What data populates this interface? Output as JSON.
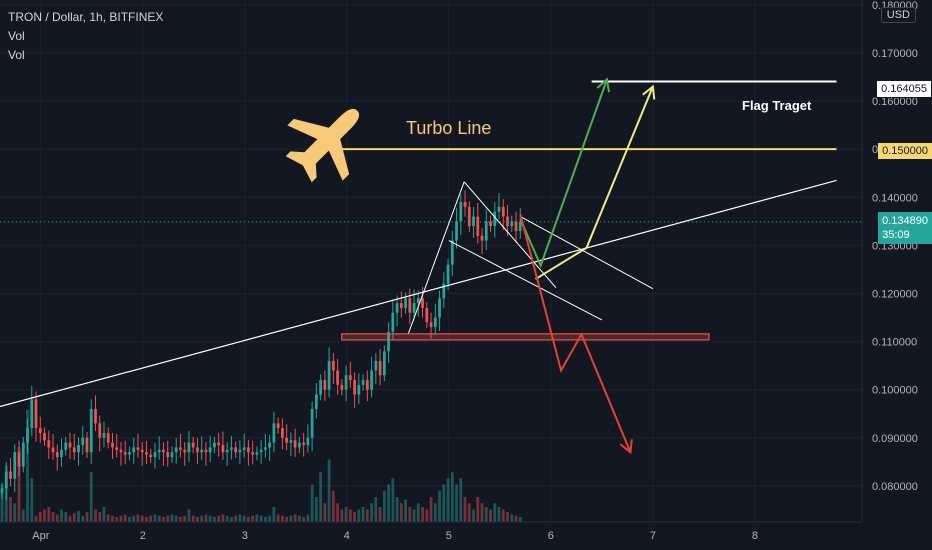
{
  "legend": {
    "title": "TRON / Dollar, 1h, BITFINEX",
    "vol1": "Vol",
    "vol2": "Vol"
  },
  "currency_button": "USD",
  "colors": {
    "background": "#131722",
    "up": "#26a69a",
    "down": "#ef5350",
    "trend": "#ffffff",
    "turbo": "#f7d774",
    "green_arrow": "#4caf50",
    "yellow_arrow": "#eeee7a",
    "red_arrow": "#e5432f",
    "plane": "#f7c97a",
    "current_price": "#26a69a"
  },
  "annotations": {
    "turbo_line": "Turbo Line",
    "flag_target": "Flag Traget",
    "plane_icon": "airplane-icon"
  },
  "price_tags": {
    "target": "0.164055",
    "turbo": "0.150000",
    "current_price": "0.134890",
    "countdown": "35:09"
  },
  "chart_data": {
    "type": "candlestick",
    "title": "TRON / Dollar, 1h, BITFINEX",
    "y_axis_ticks": [
      "0.180000",
      "0.170000",
      "0.160000",
      "0.150000",
      "0.140000",
      "0.130000",
      "0.120000",
      "0.110000",
      "0.100000",
      "0.090000",
      "0.080000"
    ],
    "y_axis_values": [
      0.18,
      0.17,
      0.16,
      0.15,
      0.14,
      0.13,
      0.12,
      0.11,
      0.1,
      0.09,
      0.08
    ],
    "x_axis_ticks": [
      "Apr",
      "2",
      "3",
      "4",
      "5",
      "6",
      "7",
      "8"
    ],
    "x_axis_values": [
      1,
      2,
      3,
      4,
      5,
      6,
      7,
      8
    ],
    "ylim": [
      0.0725,
      0.181
    ],
    "xlim": [
      0.6,
      9.05
    ],
    "current_price": 0.13489,
    "closes": [
      0.0795,
      0.083,
      0.0815,
      0.087,
      0.084,
      0.089,
      0.092,
      0.098,
      0.092,
      0.091,
      0.0895,
      0.088,
      0.087,
      0.086,
      0.0875,
      0.089,
      0.088,
      0.087,
      0.0885,
      0.09,
      0.087,
      0.096,
      0.093,
      0.09,
      0.091,
      0.089,
      0.088,
      0.0875,
      0.087,
      0.0865,
      0.087,
      0.088,
      0.0875,
      0.087,
      0.0865,
      0.086,
      0.087,
      0.0875,
      0.087,
      0.086,
      0.087,
      0.088,
      0.0875,
      0.087,
      0.089,
      0.088,
      0.087,
      0.0875,
      0.087,
      0.088,
      0.089,
      0.0885,
      0.087,
      0.0875,
      0.088,
      0.087,
      0.0875,
      0.088,
      0.087,
      0.0865,
      0.087,
      0.0875,
      0.088,
      0.089,
      0.093,
      0.092,
      0.09,
      0.089,
      0.0895,
      0.088,
      0.089,
      0.0885,
      0.09,
      0.096,
      0.099,
      0.102,
      0.1,
      0.106,
      0.104,
      0.101,
      0.1,
      0.103,
      0.102,
      0.099,
      0.101,
      0.102,
      0.1,
      0.104,
      0.106,
      0.103,
      0.108,
      0.112,
      0.116,
      0.118,
      0.117,
      0.119,
      0.116,
      0.118,
      0.119,
      0.117,
      0.114,
      0.113,
      0.115,
      0.119,
      0.122,
      0.126,
      0.131,
      0.135,
      0.139,
      0.138,
      0.134,
      0.136,
      0.132,
      0.131,
      0.135,
      0.134,
      0.137,
      0.138,
      0.136,
      0.134,
      0.135,
      0.133,
      0.1349
    ],
    "volume_levels": [
      0.3,
      0.45,
      0.2,
      0.15,
      0.6,
      0.1,
      0.9,
      0.35,
      0.05,
      0.08,
      0.1,
      0.12,
      0.08,
      0.06,
      0.1,
      0.08,
      0.05,
      0.07,
      0.09,
      0.05,
      0.08,
      0.4,
      0.1,
      0.08,
      0.12,
      0.06,
      0.05,
      0.04,
      0.05,
      0.06,
      0.04,
      0.05,
      0.06,
      0.05,
      0.04,
      0.05,
      0.06,
      0.05,
      0.04,
      0.05,
      0.06,
      0.05,
      0.04,
      0.05,
      0.1,
      0.05,
      0.04,
      0.05,
      0.06,
      0.05,
      0.04,
      0.05,
      0.06,
      0.05,
      0.04,
      0.05,
      0.06,
      0.05,
      0.04,
      0.05,
      0.06,
      0.05,
      0.04,
      0.05,
      0.12,
      0.06,
      0.05,
      0.04,
      0.05,
      0.06,
      0.05,
      0.04,
      0.06,
      0.3,
      0.2,
      0.4,
      0.15,
      0.5,
      0.25,
      0.15,
      0.1,
      0.12,
      0.1,
      0.08,
      0.1,
      0.12,
      0.1,
      0.15,
      0.2,
      0.12,
      0.25,
      0.3,
      0.35,
      0.2,
      0.15,
      0.18,
      0.12,
      0.1,
      0.15,
      0.12,
      0.1,
      0.2,
      0.15,
      0.25,
      0.3,
      0.35,
      0.4,
      0.3,
      0.35,
      0.2,
      0.15,
      0.1,
      0.2,
      0.15,
      0.12,
      0.1,
      0.15,
      0.12,
      0.1,
      0.08,
      0.06,
      0.05,
      0.04
    ],
    "trendline": {
      "x": [
        0.6,
        8.8
      ],
      "y": [
        0.0965,
        0.1435
      ]
    },
    "flag_lines": [
      {
        "x": [
          4.6,
          5.15
        ],
        "y": [
          0.1115,
          0.1432
        ]
      },
      {
        "x": [
          5.15,
          6.05
        ],
        "y": [
          0.1432,
          0.1212
        ]
      },
      {
        "x": [
          5.0,
          6.5
        ],
        "y": [
          0.131,
          0.1145
        ]
      },
      {
        "x": [
          5.7,
          7.0
        ],
        "y": [
          0.136,
          0.121
        ]
      }
    ],
    "turbo_line": {
      "x": [
        3.8,
        8.8
      ],
      "y": [
        0.15,
        0.15
      ]
    },
    "target_line": {
      "x": [
        6.4,
        8.8
      ],
      "y": [
        0.164055,
        0.164055
      ]
    },
    "support_zone": {
      "x": [
        3.95,
        7.55
      ],
      "y": [
        0.1108,
        0.1116
      ]
    },
    "green_path": {
      "x": [
        5.7,
        5.9,
        6.55
      ],
      "y": [
        0.1355,
        0.1258,
        0.1645
      ]
    },
    "yellow_path": {
      "x": [
        5.85,
        6.35,
        7.0
      ],
      "y": [
        0.123,
        0.1295,
        0.163
      ]
    },
    "red_path": {
      "x": [
        5.7,
        6.1,
        6.3,
        6.78
      ],
      "y": [
        0.1365,
        0.104,
        0.1115,
        0.087
      ]
    }
  }
}
